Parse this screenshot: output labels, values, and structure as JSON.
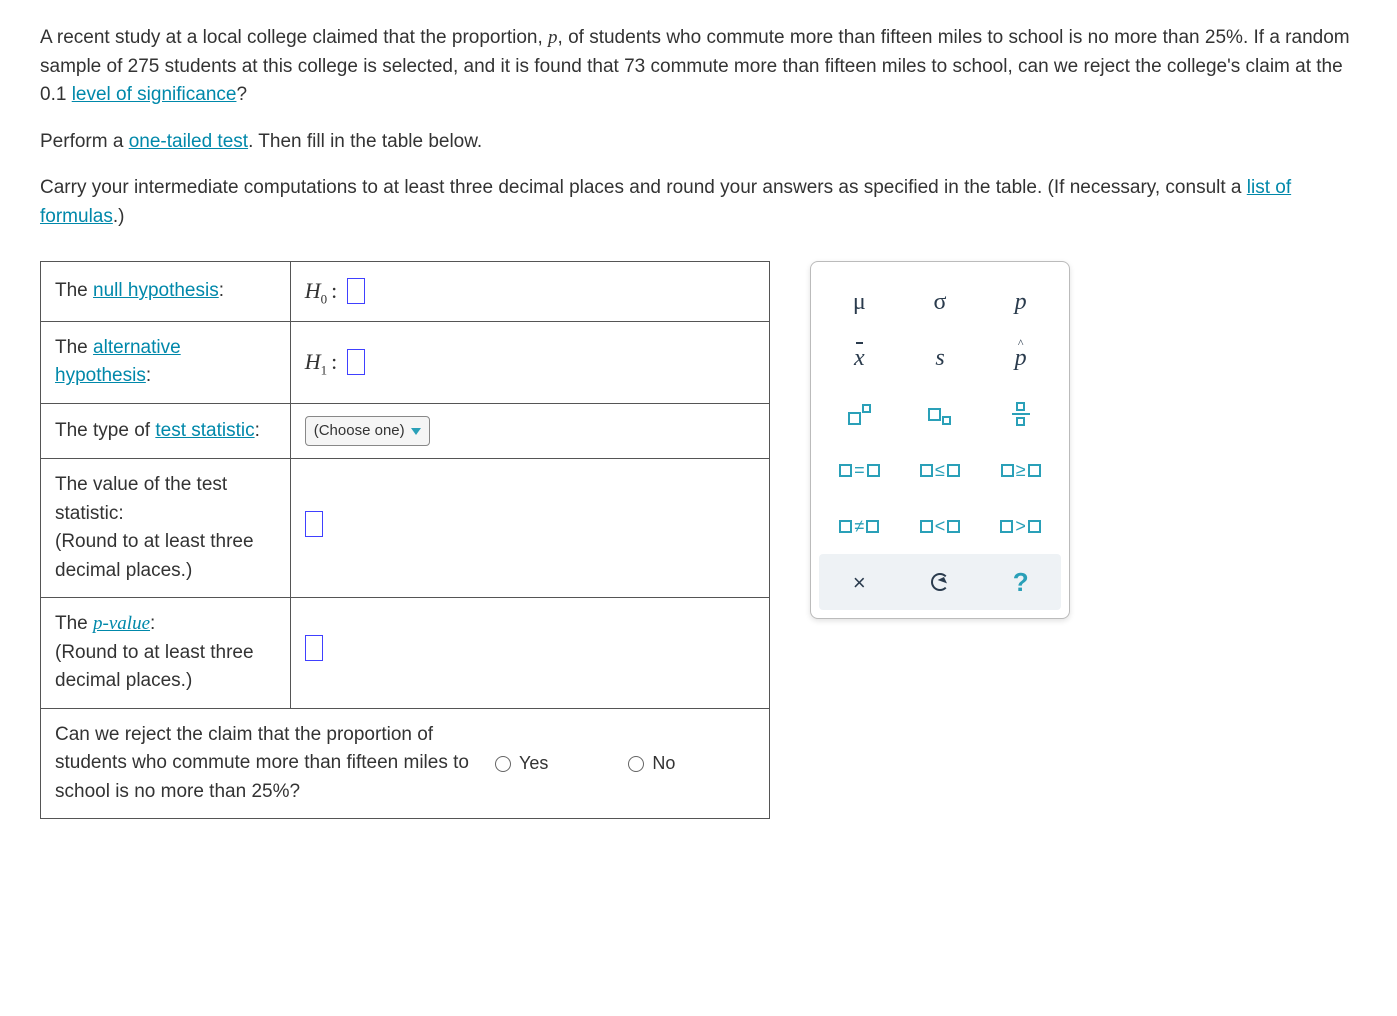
{
  "problem": {
    "p1_a": "A recent study at a local college claimed that the proportion, ",
    "p1_var": "p",
    "p1_b": ", of students who commute more than fifteen miles to school is no more than ",
    "p1_pct": "25%",
    "p1_c": ". If a random sample of ",
    "p1_n": "275",
    "p1_d": " students at this college is selected, and it is found that ",
    "p1_x": "73",
    "p1_e": " commute more than fifteen miles to school, can we reject the college's claim at the ",
    "p1_alpha": "0.1",
    "p1_f": " ",
    "level_link": "level of significance",
    "p1_g": "?",
    "p2_a": "Perform a ",
    "one_tailed_link": "one-tailed test",
    "p2_b": ". Then fill in the table below.",
    "p3_a": "Carry your intermediate computations to at least three decimal places and round your answers as specified in the table. (If necessary, consult a ",
    "formulas_link": "list of formulas",
    "p3_b": ".)"
  },
  "table": {
    "r1_label_a": "The ",
    "r1_link": "null hypothesis",
    "r1_label_b": ":",
    "r1_sym": "H",
    "r1_sub": "0",
    "r2_label_a": "The ",
    "r2_link": "alternative hypothesis",
    "r2_label_b": ":",
    "r2_sym": "H",
    "r2_sub": "1",
    "r3_label_a": "The type of ",
    "r3_link": "test statistic",
    "r3_label_b": ":",
    "r3_dropdown": "(Choose one)",
    "r4_label": "The value of the test statistic:\n(Round to at least three decimal places.)",
    "r4_l1": "The value of the test statistic:",
    "r4_l2": "(Round to at least three decimal places.)",
    "r5_label_a": "The ",
    "r5_link": "p-value",
    "r5_label_b": ":",
    "r5_l2": "(Round to at least three decimal places.)",
    "r6_q_a": "Can we reject the claim that the proportion of students who commute more than fifteen miles to school is no more than ",
    "r6_q_pct": "25%",
    "r6_q_b": "?",
    "yes": "Yes",
    "no": "No"
  },
  "palette": {
    "mu": "μ",
    "sigma": "σ",
    "p": "p",
    "xbar": "x",
    "s": "s",
    "phat": "p",
    "eq": "=",
    "le": "≤",
    "ge": "≥",
    "ne": "≠",
    "lt": "<",
    "gt": ">",
    "x": "×",
    "q": "?"
  },
  "colors": {
    "link": "#0088aa",
    "accent": "#2aa0b8",
    "slot": "#4040ff"
  }
}
